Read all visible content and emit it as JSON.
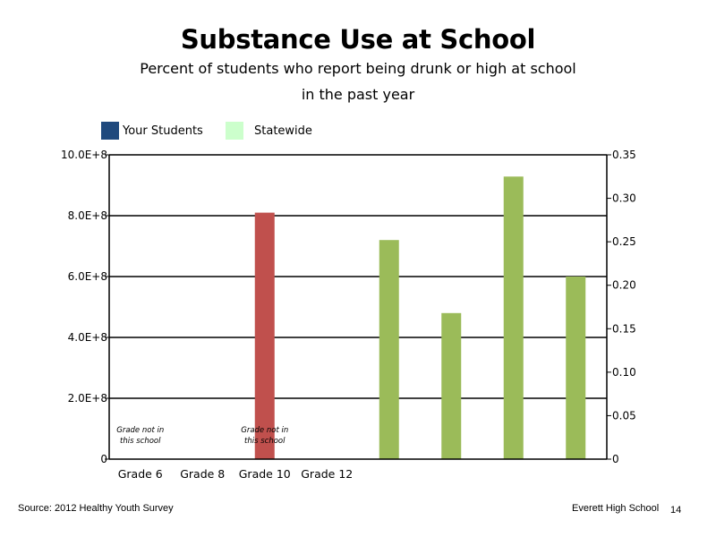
{
  "title": "Substance Use at School",
  "subtitle_line1": "Percent of students who report being drunk or high at school",
  "subtitle_line2": "in the past year",
  "legend": [
    {
      "label": "Your Students",
      "color": "#1f497d"
    },
    {
      "label": "Statewide",
      "color": "#ccffcc"
    }
  ],
  "footer": {
    "source": "Source: 2012 Healthy Youth Survey",
    "school": "Everett High School",
    "page_number": "14"
  },
  "chart_data": {
    "type": "bar",
    "categories": [
      "Grade 6",
      "Grade 8",
      "Grade 10",
      "Grade 12"
    ],
    "left_axis": {
      "ylim": [
        0,
        1000000000
      ],
      "ticks": [
        0,
        200000000,
        400000000,
        600000000,
        800000000,
        1000000000
      ],
      "tick_labels": [
        "0",
        "2.0E+8",
        "4.0E+8",
        "6.0E+8",
        "8.0E+8",
        "10.0E+8"
      ]
    },
    "right_axis": {
      "ylim": [
        0,
        0.35
      ],
      "ticks": [
        0,
        0.05,
        0.1,
        0.15,
        0.2,
        0.25,
        0.3,
        0.35
      ],
      "tick_labels": [
        "0",
        "0.05",
        "0.10",
        "0.15",
        "0.20",
        "0.25",
        "0.30",
        "0.35"
      ]
    },
    "grid": true,
    "annotations": [
      {
        "category_index": 0,
        "lines": [
          "Grade not in",
          "this school"
        ]
      },
      {
        "category_index": 2,
        "lines": [
          "Grade not in",
          "this school"
        ]
      }
    ],
    "left_bars": [
      {
        "category_index": 2,
        "value": 810000000,
        "color": "#c0504d"
      }
    ],
    "right_bars": [
      {
        "slot": 4,
        "value": 0.252,
        "color": "#9bbb59"
      },
      {
        "slot": 5,
        "value": 0.168,
        "color": "#9bbb59"
      },
      {
        "slot": 6,
        "value": 0.325,
        "color": "#9bbb59"
      },
      {
        "slot": 7,
        "value": 0.21,
        "color": "#9bbb59"
      }
    ]
  }
}
